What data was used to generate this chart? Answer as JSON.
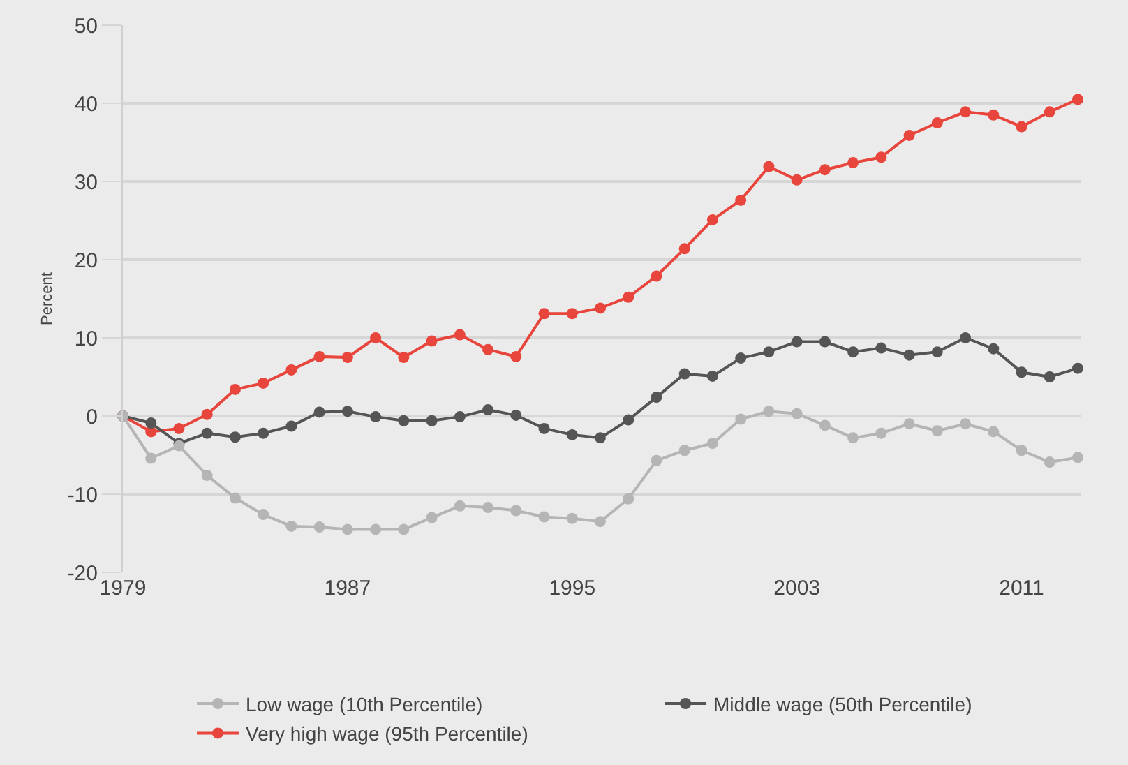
{
  "chart_data": {
    "type": "line",
    "ylabel": "Percent",
    "x": [
      1979,
      1980,
      1981,
      1982,
      1983,
      1984,
      1985,
      1986,
      1987,
      1988,
      1989,
      1990,
      1991,
      1992,
      1993,
      1994,
      1995,
      1996,
      1997,
      1998,
      1999,
      2000,
      2001,
      2002,
      2003,
      2004,
      2005,
      2006,
      2007,
      2008,
      2009,
      2010,
      2011,
      2012,
      2013
    ],
    "series": [
      {
        "name": "Low wage (10th Percentile)",
        "color": "#b5b5b5",
        "values": [
          0,
          -5.4,
          -3.8,
          -7.6,
          -10.5,
          -12.6,
          -14.1,
          -14.2,
          -14.5,
          -14.5,
          -14.5,
          -13.0,
          -11.5,
          -11.7,
          -12.1,
          -12.9,
          -13.1,
          -13.5,
          -10.6,
          -5.7,
          -4.4,
          -3.5,
          -0.4,
          0.6,
          0.3,
          -1.2,
          -2.8,
          -2.2,
          -1.0,
          -1.9,
          -1.0,
          -2.0,
          -4.4,
          -5.9,
          -5.3
        ]
      },
      {
        "name": "Middle wage (50th Percentile)",
        "color": "#555555",
        "values": [
          0,
          -0.9,
          -3.5,
          -2.2,
          -2.7,
          -2.2,
          -1.3,
          0.5,
          0.6,
          -0.1,
          -0.6,
          -0.6,
          -0.1,
          0.8,
          0.1,
          -1.6,
          -2.4,
          -2.8,
          -0.5,
          2.4,
          5.4,
          5.1,
          7.4,
          8.2,
          9.5,
          9.5,
          8.2,
          8.7,
          7.8,
          8.2,
          10.0,
          8.6,
          5.6,
          5.0,
          6.1
        ]
      },
      {
        "name": "Very high wage (95th Percentile)",
        "color": "#e8453c",
        "values": [
          0,
          -2.0,
          -1.6,
          0.2,
          3.4,
          4.2,
          5.9,
          7.6,
          7.5,
          10.0,
          7.5,
          9.6,
          10.4,
          8.5,
          7.6,
          13.1,
          13.1,
          13.8,
          15.2,
          17.9,
          21.4,
          25.1,
          27.6,
          31.9,
          30.2,
          31.5,
          32.4,
          33.1,
          35.9,
          37.5,
          38.9,
          38.5,
          37.0,
          38.9,
          40.5
        ]
      }
    ],
    "xlim": [
      1979,
      2013.1
    ],
    "xticks": [
      1979,
      1987,
      1995,
      2003,
      2011
    ],
    "ylim": [
      -20,
      50
    ],
    "yticks": [
      -20,
      -10,
      0,
      10,
      20,
      30,
      40,
      50
    ],
    "grid": "y",
    "legend": "bottom",
    "marker": "circle",
    "line_style": "solid"
  }
}
